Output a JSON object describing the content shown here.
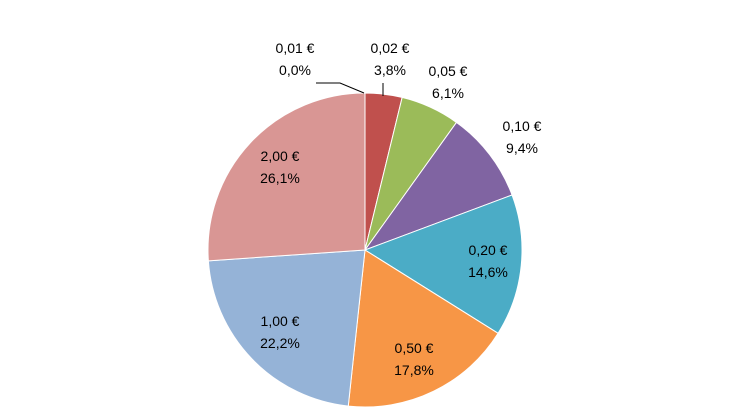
{
  "chart_data": {
    "type": "pie",
    "start_angle_deg": 0,
    "direction": "clockwise",
    "slices": [
      {
        "label": "0,01 €",
        "value": 0.0,
        "value_label": "0,0%",
        "color": "#4F81BD"
      },
      {
        "label": "0,02 €",
        "value": 3.8,
        "value_label": "3,8%",
        "color": "#C0504D"
      },
      {
        "label": "0,05 €",
        "value": 6.1,
        "value_label": "6,1%",
        "color": "#9BBB59"
      },
      {
        "label": "0,10 €",
        "value": 9.4,
        "value_label": "9,4%",
        "color": "#8064A2"
      },
      {
        "label": "0,20 €",
        "value": 14.6,
        "value_label": "14,6%",
        "color": "#4BACC6"
      },
      {
        "label": "0,50 €",
        "value": 17.8,
        "value_label": "17,8%",
        "color": "#F79646"
      },
      {
        "label": "1,00 €",
        "value": 22.2,
        "value_label": "22,2%",
        "color": "#95B3D7"
      },
      {
        "label": "2,00 €",
        "value": 26.1,
        "value_label": "26,1%",
        "color": "#D99694"
      }
    ]
  }
}
